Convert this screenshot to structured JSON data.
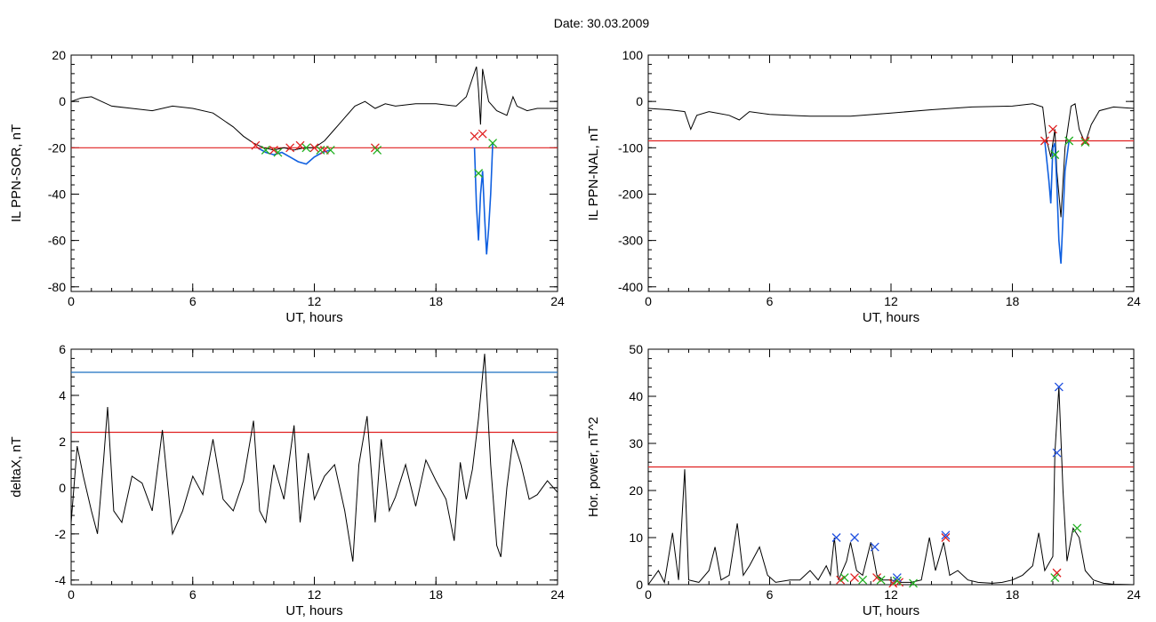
{
  "figure": {
    "title": "Date:  30.03.2009"
  },
  "colors": {
    "trace": "#000000",
    "threshold": "#e02020",
    "level": "#1a6fc0",
    "segment": "#1060e0",
    "cross_red": "#e02020",
    "cross_green": "#20b020",
    "cross_blue": "#2050e0",
    "cross_dark": "#202040"
  },
  "chart_data": [
    {
      "type": "line",
      "xlabel": "UT, hours",
      "ylabel": "IL PPN-SOR, nT",
      "xlim": [
        0,
        24
      ],
      "ylim": [
        -82,
        20
      ],
      "xticks": [
        0,
        6,
        12,
        18,
        24
      ],
      "yticks": [
        -80,
        -60,
        -40,
        -20,
        0,
        20
      ],
      "grid": false,
      "threshold": -20,
      "series": [
        {
          "values": [
            [
              0,
              0
            ],
            [
              0.5,
              1.5
            ],
            [
              1,
              2
            ],
            [
              1.5,
              0
            ],
            [
              2,
              -2
            ],
            [
              3,
              -3
            ],
            [
              4,
              -4
            ],
            [
              5,
              -2
            ],
            [
              6,
              -3
            ],
            [
              7,
              -5
            ],
            [
              7.5,
              -8
            ],
            [
              8,
              -11
            ],
            [
              8.5,
              -15
            ],
            [
              9,
              -18
            ],
            [
              9.5,
              -20
            ],
            [
              10,
              -21
            ],
            [
              10.5,
              -20
            ],
            [
              11,
              -21
            ],
            [
              11.5,
              -20
            ],
            [
              12,
              -20
            ],
            [
              12.5,
              -17
            ],
            [
              13,
              -12
            ],
            [
              13.5,
              -7
            ],
            [
              14,
              -2
            ],
            [
              14.5,
              0
            ],
            [
              15,
              -3
            ],
            [
              15.5,
              -1
            ],
            [
              16,
              -2
            ],
            [
              17,
              -1
            ],
            [
              18,
              -1
            ],
            [
              19,
              -2
            ],
            [
              19.5,
              2
            ],
            [
              19.8,
              10
            ],
            [
              20,
              15
            ],
            [
              20.1,
              5
            ],
            [
              20.2,
              -10
            ],
            [
              20.3,
              14
            ],
            [
              20.6,
              0
            ],
            [
              21,
              -4
            ],
            [
              21.5,
              -6
            ],
            [
              21.8,
              2
            ],
            [
              22,
              -2
            ],
            [
              22.5,
              -4
            ],
            [
              23,
              -3
            ],
            [
              24,
              -3
            ]
          ]
        }
      ],
      "segments": [
        [
          [
            9.2,
            -20
          ],
          [
            9.6,
            -22
          ],
          [
            10,
            -23
          ],
          [
            10.4,
            -22
          ],
          [
            10.8,
            -24
          ],
          [
            11.2,
            -26
          ],
          [
            11.6,
            -27
          ],
          [
            12,
            -24
          ],
          [
            12.4,
            -22
          ],
          [
            12.8,
            -21
          ]
        ],
        [
          [
            19.9,
            -20
          ],
          [
            20.0,
            -45
          ],
          [
            20.1,
            -60
          ],
          [
            20.2,
            -40
          ],
          [
            20.3,
            -30
          ],
          [
            20.4,
            -50
          ],
          [
            20.5,
            -66
          ],
          [
            20.6,
            -55
          ],
          [
            20.7,
            -40
          ],
          [
            20.8,
            -18
          ]
        ]
      ],
      "markers_red": [
        [
          9.1,
          -19
        ],
        [
          10,
          -21
        ],
        [
          10.8,
          -20
        ],
        [
          11.3,
          -19
        ],
        [
          12,
          -20
        ],
        [
          12.5,
          -21
        ],
        [
          15,
          -20
        ],
        [
          19.9,
          -15
        ],
        [
          20.3,
          -14
        ]
      ],
      "markers_green": [
        [
          9.6,
          -21
        ],
        [
          10.2,
          -22
        ],
        [
          11.6,
          -20
        ],
        [
          12.3,
          -21
        ],
        [
          12.8,
          -21
        ],
        [
          15.1,
          -21
        ],
        [
          20.1,
          -31
        ],
        [
          20.8,
          -18
        ]
      ]
    },
    {
      "type": "line",
      "xlabel": "UT, hours",
      "ylabel": "IL PPN-NAL, nT",
      "xlim": [
        0,
        24
      ],
      "ylim": [
        -410,
        100
      ],
      "xticks": [
        0,
        6,
        12,
        18,
        24
      ],
      "yticks": [
        -400,
        -300,
        -200,
        -100,
        0,
        100
      ],
      "grid": false,
      "threshold": -85,
      "series": [
        {
          "values": [
            [
              0,
              -15
            ],
            [
              1,
              -18
            ],
            [
              1.8,
              -22
            ],
            [
              2.1,
              -60
            ],
            [
              2.4,
              -30
            ],
            [
              3,
              -22
            ],
            [
              4,
              -30
            ],
            [
              4.5,
              -40
            ],
            [
              5,
              -22
            ],
            [
              6,
              -28
            ],
            [
              8,
              -32
            ],
            [
              10,
              -32
            ],
            [
              12,
              -25
            ],
            [
              14,
              -18
            ],
            [
              16,
              -12
            ],
            [
              18,
              -10
            ],
            [
              19,
              -5
            ],
            [
              19.5,
              -12
            ],
            [
              19.7,
              -85
            ],
            [
              19.9,
              -120
            ],
            [
              20.1,
              -60
            ],
            [
              20.2,
              -150
            ],
            [
              20.4,
              -250
            ],
            [
              20.6,
              -100
            ],
            [
              20.9,
              -10
            ],
            [
              21.1,
              -5
            ],
            [
              21.3,
              -60
            ],
            [
              21.6,
              -90
            ],
            [
              21.9,
              -50
            ],
            [
              22.3,
              -20
            ],
            [
              23,
              -12
            ],
            [
              24,
              -15
            ]
          ]
        }
      ],
      "segments": [
        [
          [
            19.6,
            -85
          ],
          [
            19.8,
            -170
          ],
          [
            19.9,
            -220
          ],
          [
            20.0,
            -100
          ],
          [
            20.1,
            -90
          ],
          [
            20.2,
            -180
          ],
          [
            20.3,
            -300
          ],
          [
            20.4,
            -350
          ],
          [
            20.5,
            -250
          ],
          [
            20.6,
            -150
          ],
          [
            20.8,
            -85
          ]
        ]
      ],
      "markers_red": [
        [
          19.6,
          -85
        ],
        [
          20.0,
          -60
        ],
        [
          21.6,
          -85
        ]
      ],
      "markers_green": [
        [
          20.1,
          -115
        ],
        [
          20.8,
          -85
        ],
        [
          21.6,
          -88
        ]
      ]
    },
    {
      "type": "line",
      "xlabel": "UT, hours",
      "ylabel": "deltaX, nT",
      "xlim": [
        0,
        24
      ],
      "ylim": [
        -4.2,
        6
      ],
      "xticks": [
        0,
        6,
        12,
        18,
        24
      ],
      "yticks": [
        -4,
        -2,
        0,
        2,
        4,
        6
      ],
      "grid": false,
      "threshold": 2.4,
      "level": 5,
      "series": [
        {
          "values": [
            [
              0,
              -1.5
            ],
            [
              0.3,
              1.8
            ],
            [
              0.6,
              0.5
            ],
            [
              1,
              -1
            ],
            [
              1.3,
              -2
            ],
            [
              1.6,
              1.2
            ],
            [
              1.8,
              3.5
            ],
            [
              2.1,
              -1
            ],
            [
              2.5,
              -1.5
            ],
            [
              3,
              0.5
            ],
            [
              3.5,
              0.2
            ],
            [
              4,
              -1
            ],
            [
              4.5,
              2.5
            ],
            [
              5,
              -2
            ],
            [
              5.5,
              -1
            ],
            [
              6,
              0.5
            ],
            [
              6.5,
              -0.3
            ],
            [
              7,
              2.1
            ],
            [
              7.5,
              -0.5
            ],
            [
              8,
              -1
            ],
            [
              8.5,
              0.3
            ],
            [
              9,
              2.9
            ],
            [
              9.3,
              -1
            ],
            [
              9.6,
              -1.5
            ],
            [
              10,
              1
            ],
            [
              10.5,
              -0.5
            ],
            [
              11,
              2.7
            ],
            [
              11.3,
              -1.5
            ],
            [
              11.7,
              1.5
            ],
            [
              12,
              -0.5
            ],
            [
              12.5,
              0.5
            ],
            [
              13,
              1
            ],
            [
              13.5,
              -1
            ],
            [
              13.9,
              -3.2
            ],
            [
              14.2,
              1
            ],
            [
              14.6,
              3.1
            ],
            [
              15,
              -1.5
            ],
            [
              15.3,
              2.1
            ],
            [
              15.7,
              -1
            ],
            [
              16,
              -0.4
            ],
            [
              16.5,
              1
            ],
            [
              17,
              -0.8
            ],
            [
              17.5,
              1.2
            ],
            [
              18,
              0.3
            ],
            [
              18.5,
              -0.5
            ],
            [
              18.9,
              -2.3
            ],
            [
              19.2,
              1.1
            ],
            [
              19.5,
              -0.5
            ],
            [
              19.8,
              0.8
            ],
            [
              20.1,
              3
            ],
            [
              20.4,
              5.8
            ],
            [
              20.7,
              1
            ],
            [
              21,
              -2.5
            ],
            [
              21.2,
              -3
            ],
            [
              21.5,
              0
            ],
            [
              21.8,
              2.1
            ],
            [
              22.2,
              1
            ],
            [
              22.6,
              -0.5
            ],
            [
              23,
              -0.3
            ],
            [
              23.5,
              0.3
            ],
            [
              24,
              -0.2
            ]
          ]
        }
      ]
    },
    {
      "type": "line",
      "xlabel": "UT, hours",
      "ylabel": "Hor. power, nT^2",
      "xlim": [
        0,
        24
      ],
      "ylim": [
        0,
        50
      ],
      "xticks": [
        0,
        6,
        12,
        18,
        24
      ],
      "yticks": [
        0,
        10,
        20,
        30,
        40,
        50
      ],
      "grid": false,
      "threshold": 25,
      "series": [
        {
          "values": [
            [
              0,
              0
            ],
            [
              0.5,
              3
            ],
            [
              0.8,
              0.5
            ],
            [
              1.2,
              11
            ],
            [
              1.5,
              1
            ],
            [
              1.8,
              24.5
            ],
            [
              2,
              1
            ],
            [
              2.5,
              0.5
            ],
            [
              3,
              3
            ],
            [
              3.3,
              8
            ],
            [
              3.6,
              1
            ],
            [
              4,
              2
            ],
            [
              4.4,
              13
            ],
            [
              4.7,
              2
            ],
            [
              5,
              4
            ],
            [
              5.5,
              8
            ],
            [
              5.9,
              2
            ],
            [
              6.3,
              0.5
            ],
            [
              7,
              1
            ],
            [
              7.5,
              1
            ],
            [
              8,
              3
            ],
            [
              8.4,
              1
            ],
            [
              8.8,
              4
            ],
            [
              9,
              2
            ],
            [
              9.2,
              10
            ],
            [
              9.4,
              1
            ],
            [
              9.8,
              5
            ],
            [
              10,
              9
            ],
            [
              10.3,
              3
            ],
            [
              10.6,
              2
            ],
            [
              11,
              9
            ],
            [
              11.3,
              2
            ],
            [
              11.6,
              1
            ],
            [
              12,
              1
            ],
            [
              12.5,
              0.5
            ],
            [
              13,
              0.5
            ],
            [
              13.5,
              1
            ],
            [
              13.9,
              10
            ],
            [
              14.2,
              3
            ],
            [
              14.6,
              9
            ],
            [
              14.9,
              2
            ],
            [
              15.3,
              3
            ],
            [
              15.8,
              1
            ],
            [
              16.3,
              0.5
            ],
            [
              17,
              0.3
            ],
            [
              17.5,
              0.5
            ],
            [
              18,
              1
            ],
            [
              18.5,
              2
            ],
            [
              19,
              4
            ],
            [
              19.3,
              11
            ],
            [
              19.6,
              3
            ],
            [
              20,
              6
            ],
            [
              20.1,
              28
            ],
            [
              20.3,
              42
            ],
            [
              20.5,
              20
            ],
            [
              20.7,
              5
            ],
            [
              21,
              12
            ],
            [
              21.3,
              10
            ],
            [
              21.6,
              3
            ],
            [
              22,
              1
            ],
            [
              22.5,
              0.3
            ],
            [
              23,
              0.1
            ],
            [
              24,
              0
            ]
          ]
        }
      ],
      "markers_red": [
        [
          9.5,
          1
        ],
        [
          10.2,
          1.5
        ],
        [
          11.3,
          1.5
        ],
        [
          12.1,
          0.3
        ],
        [
          12.4,
          0.5
        ],
        [
          14.7,
          10
        ],
        [
          20.2,
          2.5
        ]
      ],
      "markers_green": [
        [
          9.7,
          1.5
        ],
        [
          10.6,
          1
        ],
        [
          11.5,
          1
        ],
        [
          12.3,
          0.8
        ],
        [
          13.1,
          0.3
        ],
        [
          20.1,
          1.5
        ],
        [
          21.2,
          12
        ]
      ],
      "markers_blue": [
        [
          9.3,
          10
        ],
        [
          10.2,
          10
        ],
        [
          11.2,
          8
        ],
        [
          12.3,
          1.5
        ],
        [
          14.7,
          10.5
        ],
        [
          20.2,
          28
        ],
        [
          20.3,
          42
        ]
      ]
    }
  ]
}
